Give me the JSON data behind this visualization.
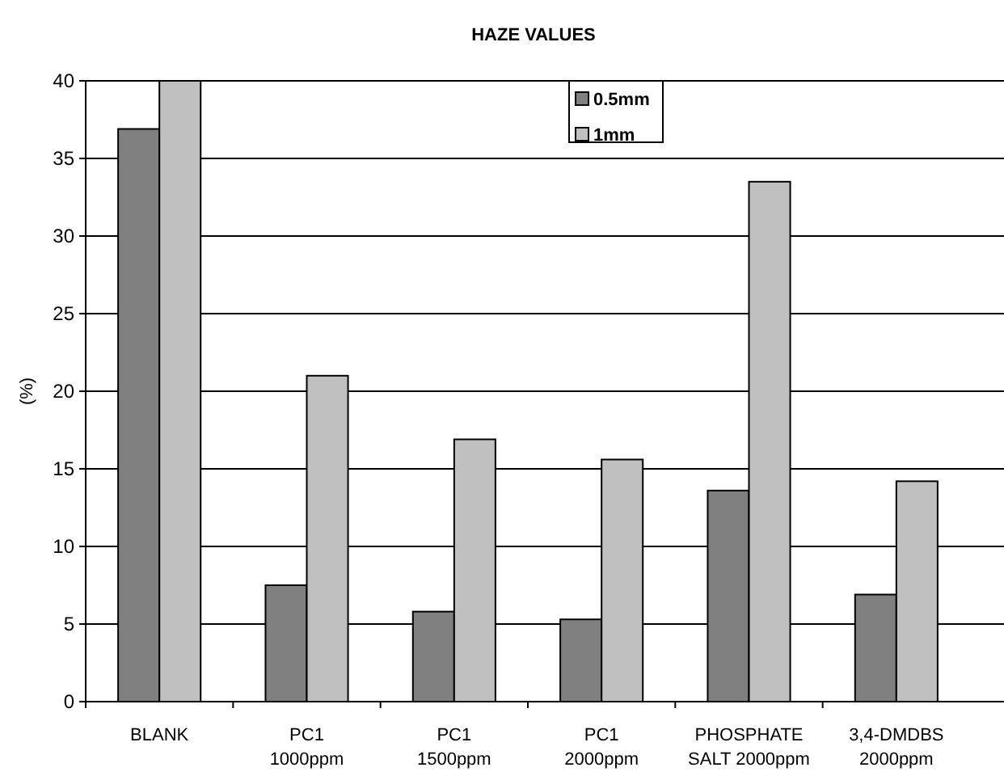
{
  "chart_data": {
    "type": "bar",
    "title": "HAZE VALUES",
    "ylabel": "(%)",
    "categories": [
      "BLANK",
      "PC1\n1000ppm",
      "PC1\n1500ppm",
      "PC1\n2000ppm",
      "PHOSPHATE\nSALT 2000ppm",
      "3,4-DMDBS\n2000ppm"
    ],
    "series": [
      {
        "name": "0.5mm",
        "color": "#808080",
        "values": [
          36.9,
          7.5,
          5.8,
          5.3,
          13.6,
          6.9
        ]
      },
      {
        "name": "1mm",
        "color": "#c0c0c0",
        "values": [
          40,
          21,
          16.9,
          15.6,
          33.5,
          14.2
        ]
      }
    ],
    "ylim": [
      0,
      40
    ],
    "yticks": [
      0,
      5,
      10,
      15,
      20,
      25,
      30,
      35,
      40
    ],
    "grid": "y",
    "legend": "top"
  }
}
